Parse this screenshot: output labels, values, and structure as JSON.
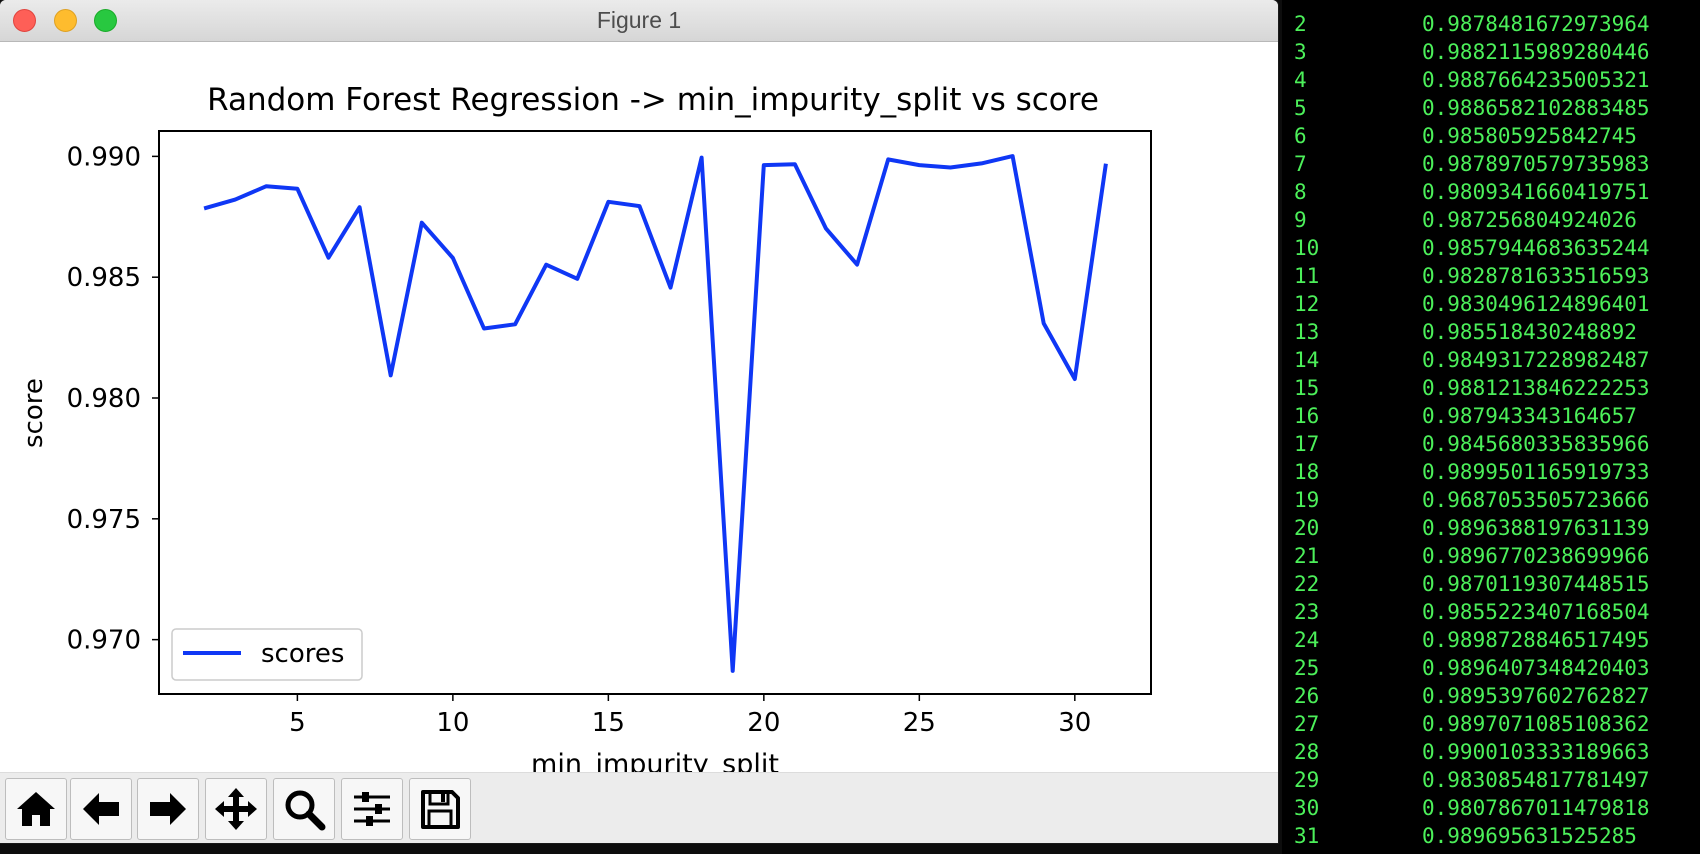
{
  "window": {
    "title": "Figure 1"
  },
  "toolbar": {
    "buttons": [
      {
        "icon": "home-icon",
        "name": "home-button"
      },
      {
        "icon": "back-arrow-icon",
        "name": "back-button"
      },
      {
        "icon": "forward-arrow-icon",
        "name": "forward-button"
      },
      {
        "icon": "pan-move-icon",
        "name": "pan-button"
      },
      {
        "icon": "zoom-magnifier-icon",
        "name": "zoom-button"
      },
      {
        "icon": "subplots-sliders-icon",
        "name": "configure-subplots-button"
      },
      {
        "icon": "save-disk-icon",
        "name": "save-button"
      }
    ]
  },
  "chart_data": {
    "type": "line",
    "title": "Random Forest Regression -> min_impurity_split vs score",
    "xlabel": "min_impurity_split",
    "ylabel": "score",
    "xlim": [
      0.55,
      32.45
    ],
    "ylim": [
      0.96775,
      0.99105
    ],
    "xticks": [
      5,
      10,
      15,
      20,
      25,
      30
    ],
    "yticks": [
      0.97,
      0.975,
      0.98,
      0.985,
      0.99
    ],
    "xtick_labels": [
      "5",
      "10",
      "15",
      "20",
      "25",
      "30"
    ],
    "ytick_labels": [
      "0.970",
      "0.975",
      "0.980",
      "0.985",
      "0.990"
    ],
    "legend": {
      "position": "lower-left",
      "entries": [
        "scores"
      ]
    },
    "color": "#0f37f5",
    "grid": false,
    "series": [
      {
        "name": "scores",
        "x": [
          2,
          3,
          4,
          5,
          6,
          7,
          8,
          9,
          10,
          11,
          12,
          13,
          14,
          15,
          16,
          17,
          18,
          19,
          20,
          21,
          22,
          23,
          24,
          25,
          26,
          27,
          28,
          29,
          30,
          31
        ],
        "y": [
          0.9878481672973964,
          0.9882115989280446,
          0.9887664235005321,
          0.9886582102883485,
          0.985805925842745,
          0.9878970579735983,
          0.9809341660419751,
          0.987256804924026,
          0.9857944683635244,
          0.9828781633516593,
          0.9830496124896401,
          0.985518430248892,
          0.9849317228982487,
          0.9881213846222253,
          0.987943343164657,
          0.9845680335835966,
          0.9899501165919733,
          0.9687053505723666,
          0.9896388197631139,
          0.9896770238699966,
          0.9870119307448515,
          0.9855223407168504,
          0.9898728846517495,
          0.9896407348420403,
          0.9895397602762827,
          0.9897071085108362,
          0.9900103333189663,
          0.9830854817781497,
          0.9807867011479818,
          0.989695631525285
        ]
      }
    ]
  },
  "terminal": {
    "rows": [
      {
        "index": "2",
        "value": "0.9878481672973964"
      },
      {
        "index": "3",
        "value": "0.9882115989280446"
      },
      {
        "index": "4",
        "value": "0.9887664235005321"
      },
      {
        "index": "5",
        "value": "0.9886582102883485"
      },
      {
        "index": "6",
        "value": "0.985805925842745"
      },
      {
        "index": "7",
        "value": "0.9878970579735983"
      },
      {
        "index": "8",
        "value": "0.9809341660419751"
      },
      {
        "index": "9",
        "value": "0.987256804924026"
      },
      {
        "index": "10",
        "value": "0.9857944683635244"
      },
      {
        "index": "11",
        "value": "0.9828781633516593"
      },
      {
        "index": "12",
        "value": "0.9830496124896401"
      },
      {
        "index": "13",
        "value": "0.985518430248892"
      },
      {
        "index": "14",
        "value": "0.9849317228982487"
      },
      {
        "index": "15",
        "value": "0.9881213846222253"
      },
      {
        "index": "16",
        "value": "0.987943343164657"
      },
      {
        "index": "17",
        "value": "0.9845680335835966"
      },
      {
        "index": "18",
        "value": "0.9899501165919733"
      },
      {
        "index": "19",
        "value": "0.9687053505723666"
      },
      {
        "index": "20",
        "value": "0.9896388197631139"
      },
      {
        "index": "21",
        "value": "0.9896770238699966"
      },
      {
        "index": "22",
        "value": "0.9870119307448515"
      },
      {
        "index": "23",
        "value": "0.9855223407168504"
      },
      {
        "index": "24",
        "value": "0.9898728846517495"
      },
      {
        "index": "25",
        "value": "0.9896407348420403"
      },
      {
        "index": "26",
        "value": "0.9895397602762827"
      },
      {
        "index": "27",
        "value": "0.9897071085108362"
      },
      {
        "index": "28",
        "value": "0.9900103333189663"
      },
      {
        "index": "29",
        "value": "0.9830854817781497"
      },
      {
        "index": "30",
        "value": "0.9807867011479818"
      },
      {
        "index": "31",
        "value": "0.989695631525285"
      }
    ],
    "text_color": "#4cf05a"
  }
}
